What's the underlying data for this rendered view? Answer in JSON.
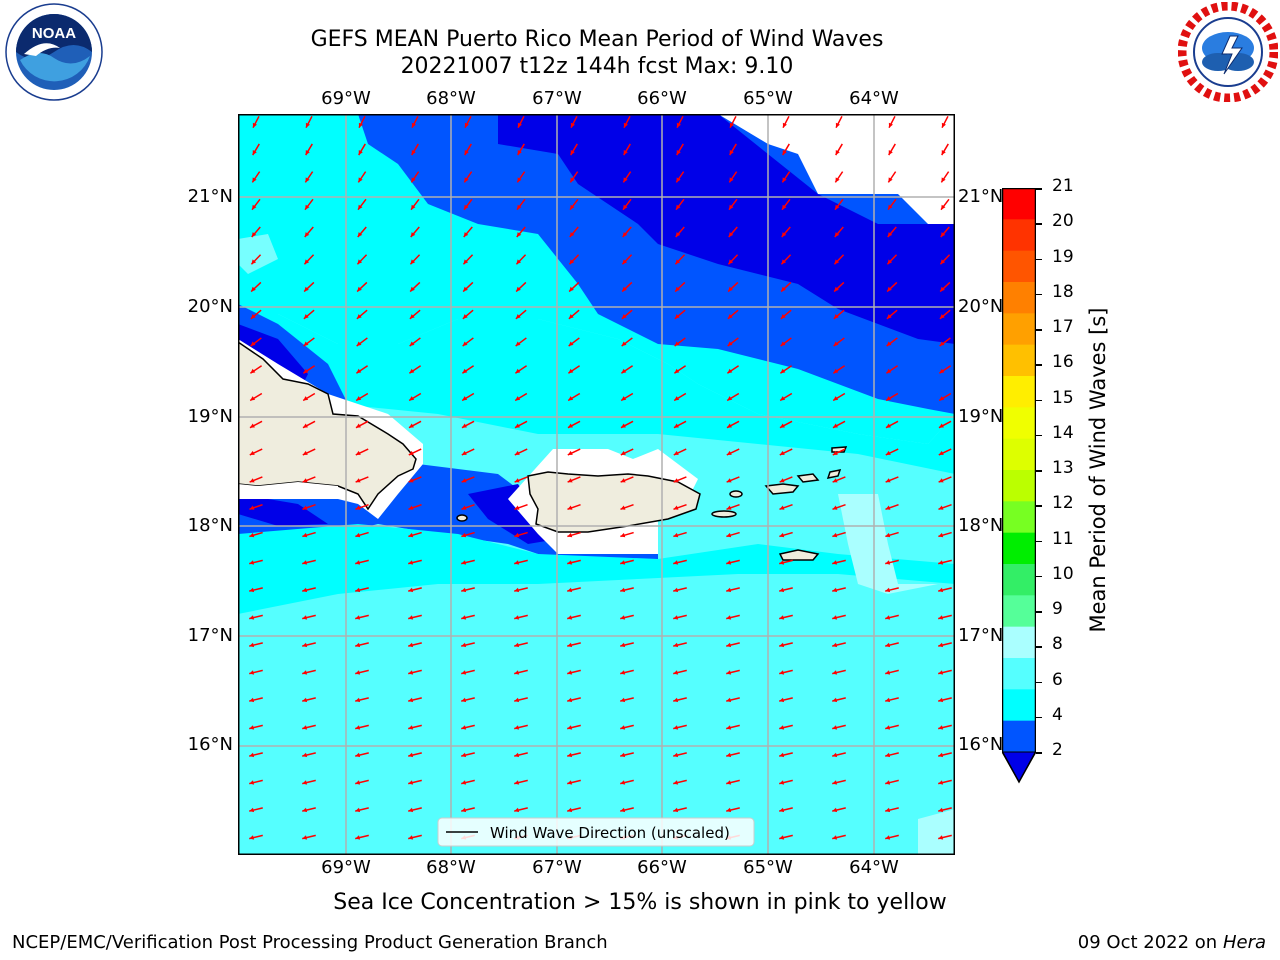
{
  "title": {
    "line1": "GEFS MEAN Puerto Rico Mean Period of Wind Waves",
    "line2": "20221007 t12z 144h fcst   Max: 9.10"
  },
  "logos": {
    "left": {
      "text": "NOAA",
      "ring_text": "NATIONAL OCEANIC AND ATMOSPHERIC ADMINISTRATION · U.S. DEPARTMENT OF COMMERCE",
      "icon": "noaa-logo"
    },
    "right": {
      "ring_text": "NATIONAL WEATHER SERVICE",
      "icon": "nws-logo"
    }
  },
  "map": {
    "lon_labels": [
      "69°W",
      "68°W",
      "67°W",
      "66°W",
      "65°W",
      "64°W"
    ],
    "lat_labels": [
      "21°N",
      "20°N",
      "19°N",
      "18°N",
      "17°N",
      "16°N"
    ],
    "legend_text": "Wind Wave Direction (unscaled)",
    "colors": {
      "ocean_2_4": "#0055ff",
      "ocean_lt2": "#0000e8",
      "ocean_4_6": "#00ffff",
      "ocean_6_8": "#55ffff",
      "ocean_8_9": "#aaffff",
      "land": "#efedde",
      "arrow": "#ff0000"
    }
  },
  "colorbar": {
    "label": "Mean Period of Wind Waves [s]",
    "ticks": [
      "21",
      "20",
      "19",
      "18",
      "17",
      "16",
      "15",
      "14",
      "13",
      "12",
      "11",
      "10",
      "9",
      "8",
      "6",
      "4",
      "2"
    ],
    "colors": [
      "#ff0000",
      "#ff3300",
      "#ff5500",
      "#ff8000",
      "#ffa000",
      "#ffc000",
      "#ffee00",
      "#f0ff00",
      "#ddff00",
      "#bbff00",
      "#77ff22",
      "#00ee00",
      "#33ee66",
      "#55ff99",
      "#aaffff",
      "#55ffff",
      "#00ffff",
      "#0055ff",
      "#0000e8"
    ]
  },
  "caption": "Sea Ice Concentration > 15% is shown in pink to yellow",
  "footer": {
    "left": "NCEP/EMC/Verification Post Processing Product Generation Branch",
    "right_prefix": "09 Oct 2022 on ",
    "right_host": "Hera"
  }
}
